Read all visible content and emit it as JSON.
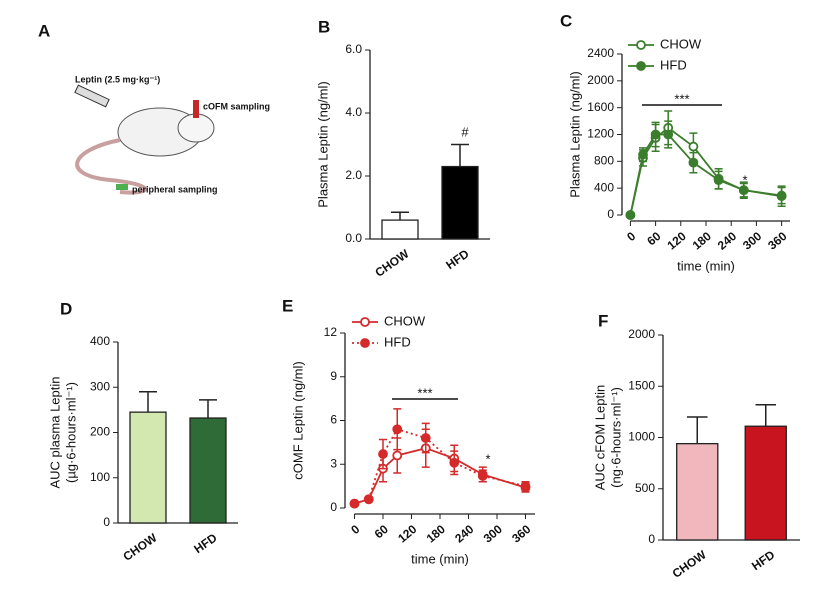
{
  "diagram": {
    "panel_label": "A",
    "labels": [
      "Leptin (2.5 mg·kg⁻¹)",
      "cOFM sampling",
      "peripheral sampling"
    ]
  },
  "chart_data": [
    {
      "type": "bar",
      "panel_label": "B",
      "ylabel": [
        "Plasma Leptin (ng/ml)"
      ],
      "categories": [
        "CHOW",
        "HFD"
      ],
      "values": [
        0.6,
        2.3
      ],
      "errors": [
        0.25,
        0.7
      ],
      "colors": [
        "#ffffff",
        "#000000"
      ],
      "annotations": [
        "#"
      ],
      "ylim": [
        0,
        6
      ],
      "yticks": [
        {
          "value": 0,
          "label": "0.0"
        },
        {
          "value": 2,
          "label": "2.0"
        },
        {
          "value": 4,
          "label": "4.0"
        },
        {
          "value": 6,
          "label": "6.0"
        }
      ]
    },
    {
      "type": "line",
      "panel_label": "C",
      "ylabel": [
        "Plasma Leptin (ng/ml)"
      ],
      "xlabel": "time (min)",
      "x": [
        0,
        30,
        60,
        90,
        150,
        210,
        270,
        360
      ],
      "series": [
        {
          "name": "CHOW",
          "color": "#3a7d2c",
          "marker": "open",
          "line_style": "solid",
          "values": [
            0,
            850,
            1150,
            1300,
            1020,
            540,
            370,
            280
          ],
          "errors": [
            0,
            120,
            200,
            250,
            200,
            150,
            120,
            150
          ]
        },
        {
          "name": "HFD",
          "color": "#3a7d2c",
          "marker": "filled",
          "line_style": "solid",
          "values": [
            0,
            900,
            1200,
            1200,
            780,
            520,
            370,
            290
          ],
          "errors": [
            0,
            100,
            180,
            200,
            150,
            130,
            100,
            120
          ]
        }
      ],
      "annotations": [
        "***",
        "*"
      ],
      "xlim": [
        -20,
        380
      ],
      "xticks": [
        0,
        60,
        120,
        180,
        240,
        300,
        360
      ],
      "ylim": [
        0,
        2400
      ],
      "yticks": [
        0,
        400,
        800,
        1200,
        1600,
        2000,
        2400
      ]
    },
    {
      "type": "bar",
      "panel_label": "D",
      "ylabel": [
        "AUC plasma Leptin",
        "(µg·6-hours·ml⁻¹)"
      ],
      "categories": [
        "CHOW",
        "HFD"
      ],
      "values": [
        245,
        232
      ],
      "errors": [
        45,
        40
      ],
      "colors": [
        "#d3e8b0",
        "#2e6b37"
      ],
      "ylim": [
        0,
        400
      ],
      "yticks": [
        0,
        100,
        200,
        300,
        400
      ]
    },
    {
      "type": "line",
      "panel_label": "E",
      "ylabel": [
        "cOMF Leptin (ng/ml)"
      ],
      "xlabel": "time (min)",
      "x": [
        0,
        30,
        60,
        90,
        150,
        210,
        270,
        360
      ],
      "series": [
        {
          "name": "CHOW",
          "color": "#d42a2a",
          "marker": "open",
          "line_style": "solid",
          "values": [
            0.3,
            0.6,
            2.7,
            3.6,
            4.1,
            3.4,
            2.3,
            1.4
          ],
          "errors": [
            0.15,
            0.15,
            0.9,
            1.2,
            1.3,
            0.9,
            0.5,
            0.3
          ]
        },
        {
          "name": "HFD",
          "color": "#d42a2a",
          "marker": "filled",
          "line_style": "dotted",
          "values": [
            0.3,
            0.6,
            3.7,
            5.4,
            4.8,
            3.1,
            2.2,
            1.5
          ],
          "errors": [
            0.1,
            0.1,
            1.0,
            1.4,
            1.0,
            0.8,
            0.4,
            0.3
          ]
        }
      ],
      "annotations": [
        "***",
        "*"
      ],
      "xlim": [
        -20,
        380
      ],
      "xticks": [
        0,
        60,
        120,
        180,
        240,
        300,
        360
      ],
      "ylim": [
        0,
        12
      ],
      "yticks": [
        0,
        3,
        6,
        9,
        12
      ]
    },
    {
      "type": "bar",
      "panel_label": "F",
      "ylabel": [
        "AUC cFOM Leptin",
        "(ng·6-hours·ml⁻¹)"
      ],
      "categories": [
        "CHOW",
        "HFD"
      ],
      "values": [
        940,
        1110
      ],
      "errors": [
        260,
        210
      ],
      "colors": [
        "#f0b8bc",
        "#c8141e"
      ],
      "ylim": [
        0,
        2000
      ],
      "yticks": [
        0,
        500,
        1000,
        1500,
        2000
      ]
    }
  ]
}
